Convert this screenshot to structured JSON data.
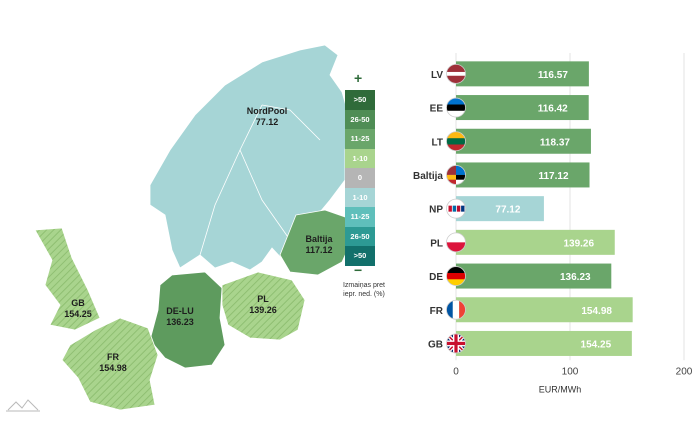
{
  "colors": {
    "dark_green": "#2f6b3a",
    "mid_green": "#5e9b5e",
    "green": "#6aa66a",
    "light_green": "#a9d48d",
    "gray": "#b5b5b5",
    "light_teal": "#a6d5d6",
    "teal": "#5fbfbb",
    "dark_teal": "#2d9a94",
    "darkest_teal": "#12706b"
  },
  "map": {
    "regions": [
      {
        "name": "NordPool",
        "value": "77.12",
        "color": "#a6d5d6",
        "text_color": "dark"
      },
      {
        "name": "Baltija",
        "value": "117.12",
        "color": "#6aa66a",
        "text_color": "dark"
      },
      {
        "name": "DE-LU",
        "value": "136.23",
        "color": "#5e9b5e",
        "text_color": "dark"
      },
      {
        "name": "PL",
        "value": "139.26",
        "color": "#a9d48d",
        "text_color": "dark"
      },
      {
        "name": "GB",
        "value": "154.25",
        "color": "#a9d48d",
        "text_color": "dark"
      },
      {
        "name": "FR",
        "value": "154.98",
        "color": "#a9d48d",
        "text_color": "dark"
      }
    ]
  },
  "legend": {
    "plus": "+",
    "minus": "−",
    "items": [
      {
        "label": ">50",
        "color": "#2f6b3a"
      },
      {
        "label": "26-50",
        "color": "#4f8d55"
      },
      {
        "label": "11-25",
        "color": "#6aa66a"
      },
      {
        "label": "1-10",
        "color": "#a9d48d"
      },
      {
        "label": "0",
        "color": "#b5b5b5"
      },
      {
        "label": "1-10",
        "color": "#a6d5d6"
      },
      {
        "label": "11-25",
        "color": "#5fbfbb"
      },
      {
        "label": "26-50",
        "color": "#2d9a94"
      },
      {
        "label": ">50",
        "color": "#12706b"
      }
    ],
    "caption_line1": "Izmaiņas pret",
    "caption_line2": "iepr. ned. (%)"
  },
  "chart_data": {
    "type": "bar",
    "orientation": "horizontal",
    "categories": [
      "LV",
      "EE",
      "LT",
      "Baltija",
      "NP",
      "PL",
      "DE",
      "FR",
      "GB"
    ],
    "values": [
      116.57,
      116.42,
      118.37,
      117.12,
      77.12,
      139.26,
      136.23,
      154.98,
      154.25
    ],
    "value_labels": [
      "116.57",
      "116.42",
      "118.37",
      "117.12",
      "77.12",
      "139.26",
      "136.23",
      "154.98",
      "154.25"
    ],
    "bar_colors": [
      "#6aa66a",
      "#6aa66a",
      "#6aa66a",
      "#6aa66a",
      "#a6d5d6",
      "#a9d48d",
      "#6aa66a",
      "#a9d48d",
      "#a9d48d"
    ],
    "flags": [
      "lv-flag-icon",
      "ee-flag-icon",
      "lt-flag-icon",
      "baltic-flags-icon",
      "nordpool-flags-icon",
      "pl-flag-icon",
      "de-flag-icon",
      "fr-flag-icon",
      "gb-flag-icon"
    ],
    "xlim": [
      0,
      200
    ],
    "xticks": [
      "0",
      "100",
      "200"
    ],
    "xlabel": "EUR/MWh",
    "ylabel": "",
    "grid": true
  }
}
